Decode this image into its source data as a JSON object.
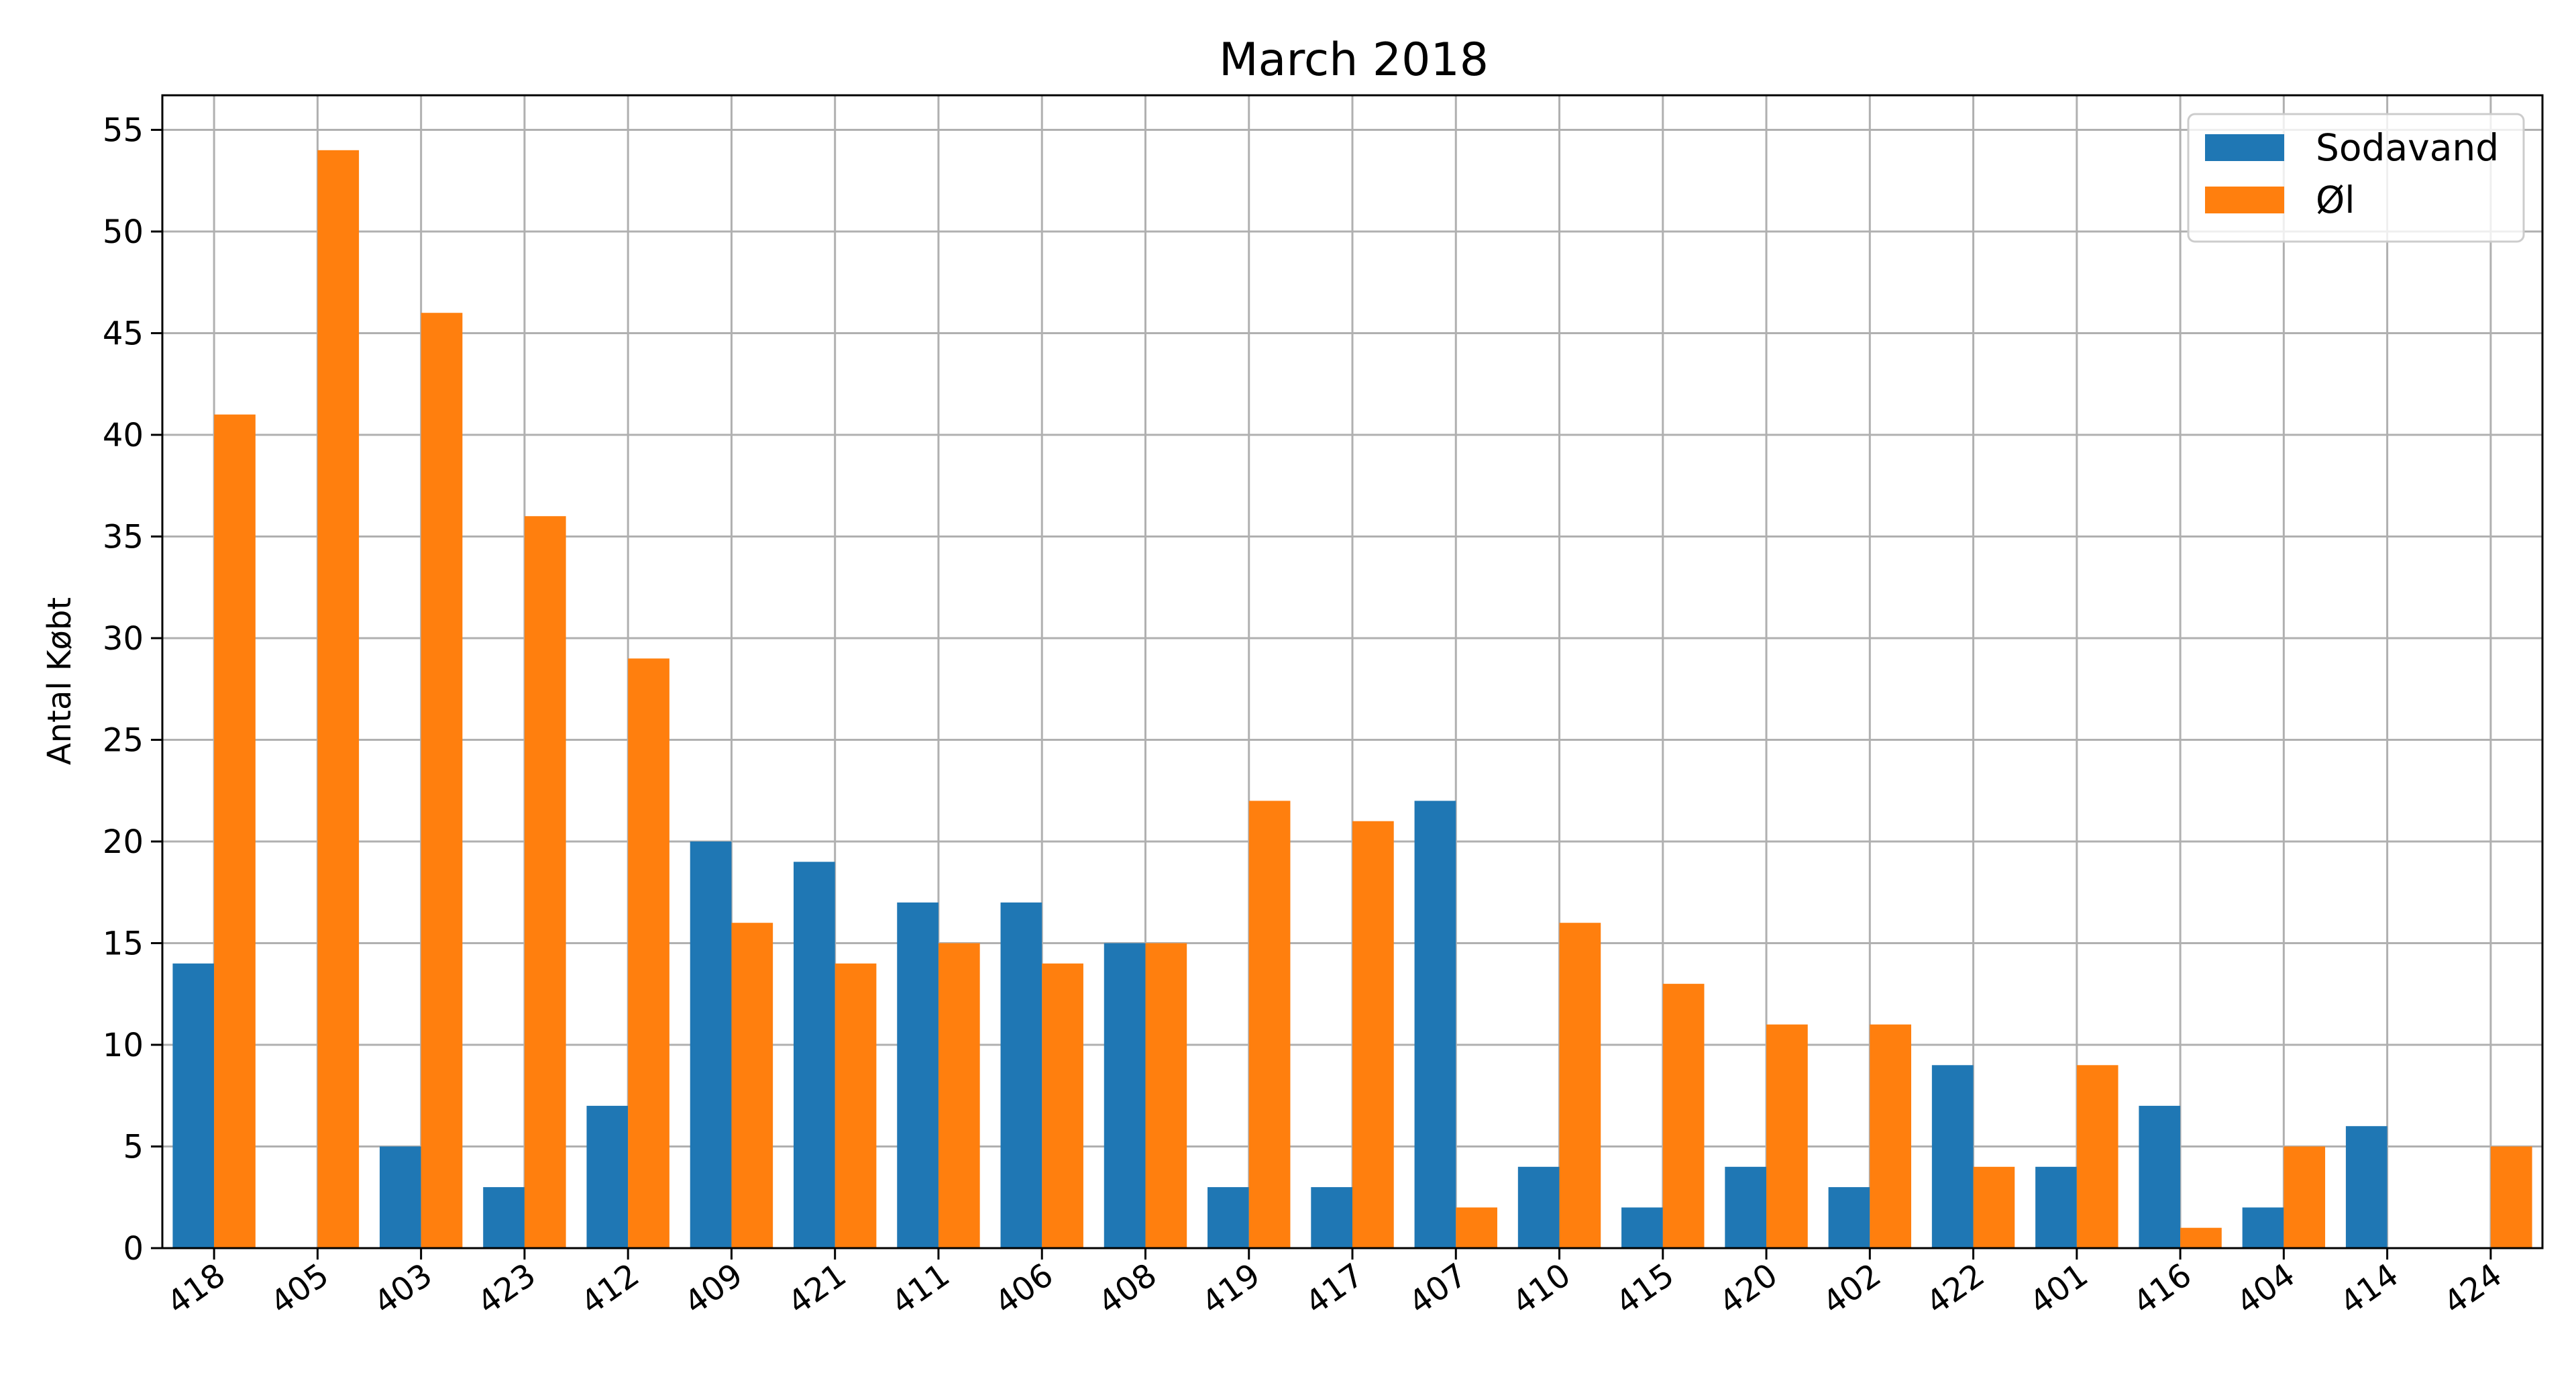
{
  "chart_data": {
    "type": "bar",
    "title": "March 2018",
    "xlabel": "",
    "ylabel": "Antal Købt",
    "ylim": [
      0,
      56.7
    ],
    "yticks": [
      0,
      5,
      10,
      15,
      20,
      25,
      30,
      35,
      40,
      45,
      50,
      55
    ],
    "grid": true,
    "legend": "top-right",
    "categories": [
      "418",
      "405",
      "403",
      "423",
      "412",
      "409",
      "421",
      "411",
      "406",
      "408",
      "419",
      "417",
      "407",
      "410",
      "415",
      "420",
      "402",
      "422",
      "401",
      "416",
      "404",
      "414",
      "424"
    ],
    "series": [
      {
        "name": "Sodavand",
        "color": "#1f77b4",
        "values": [
          14,
          0,
          5,
          3,
          7,
          20,
          19,
          17,
          17,
          15,
          3,
          3,
          22,
          4,
          2,
          4,
          3,
          9,
          4,
          7,
          2,
          6,
          0
        ]
      },
      {
        "name": "Øl",
        "color": "#ff7f0e",
        "values": [
          41,
          54,
          46,
          36,
          29,
          16,
          14,
          15,
          14,
          15,
          22,
          21,
          2,
          16,
          13,
          11,
          11,
          4,
          9,
          1,
          5,
          0,
          5
        ]
      }
    ]
  }
}
